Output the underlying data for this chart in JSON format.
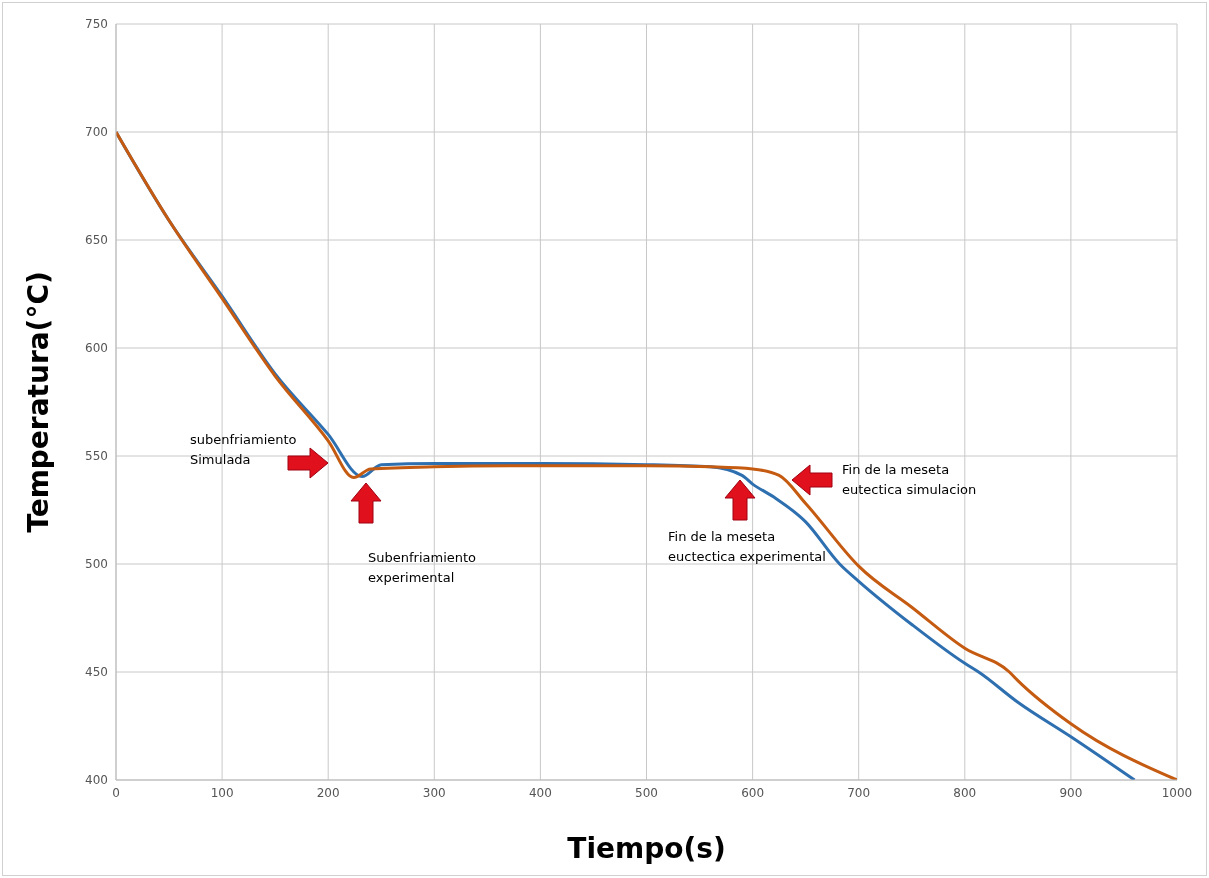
{
  "chart_data": {
    "type": "line",
    "xlabel": "Tiempo(s)",
    "ylabel": "Temperatura(°C)",
    "xlim": [
      0,
      1000
    ],
    "xticks": [
      0,
      100,
      200,
      300,
      400,
      500,
      600,
      700,
      800,
      900,
      1000
    ],
    "ylim": [
      400,
      750
    ],
    "yticks": [
      400,
      450,
      500,
      550,
      600,
      650,
      700,
      750
    ],
    "grid": true,
    "line_style": "solid",
    "marker": "none",
    "series": [
      {
        "color": "#2e6fb0",
        "x": [
          0,
          50,
          100,
          150,
          200,
          232,
          250,
          300,
          400,
          500,
          560,
          590,
          600,
          620,
          650,
          682,
          700,
          750,
          800,
          813,
          850,
          900,
          960
        ],
        "values": [
          700,
          659,
          624,
          588,
          560,
          540.5,
          546,
          546.5,
          546.5,
          546,
          545,
          541,
          537,
          531,
          519.5,
          500,
          492,
          472,
          454,
          450,
          436,
          420,
          400
        ]
      },
      {
        "color": "#c55a11",
        "x": [
          0,
          50,
          100,
          150,
          200,
          224,
          240,
          300,
          400,
          500,
          560,
          600,
          625,
          650,
          698,
          700,
          750,
          800,
          842,
          850,
          900,
          1000
        ],
        "values": [
          700,
          659,
          623,
          587,
          557,
          540,
          544,
          545,
          545.5,
          545.5,
          545,
          544,
          541,
          528,
          500,
          499,
          480,
          461,
          450,
          446,
          426,
          400
        ]
      }
    ],
    "annotations": [
      "subenfriamiento\nSimulada",
      "Subenfriamiento\nexperimental",
      "Fin de la meseta\neuctectica experimental",
      "Fin de la meseta\neutectica simulacion"
    ]
  }
}
